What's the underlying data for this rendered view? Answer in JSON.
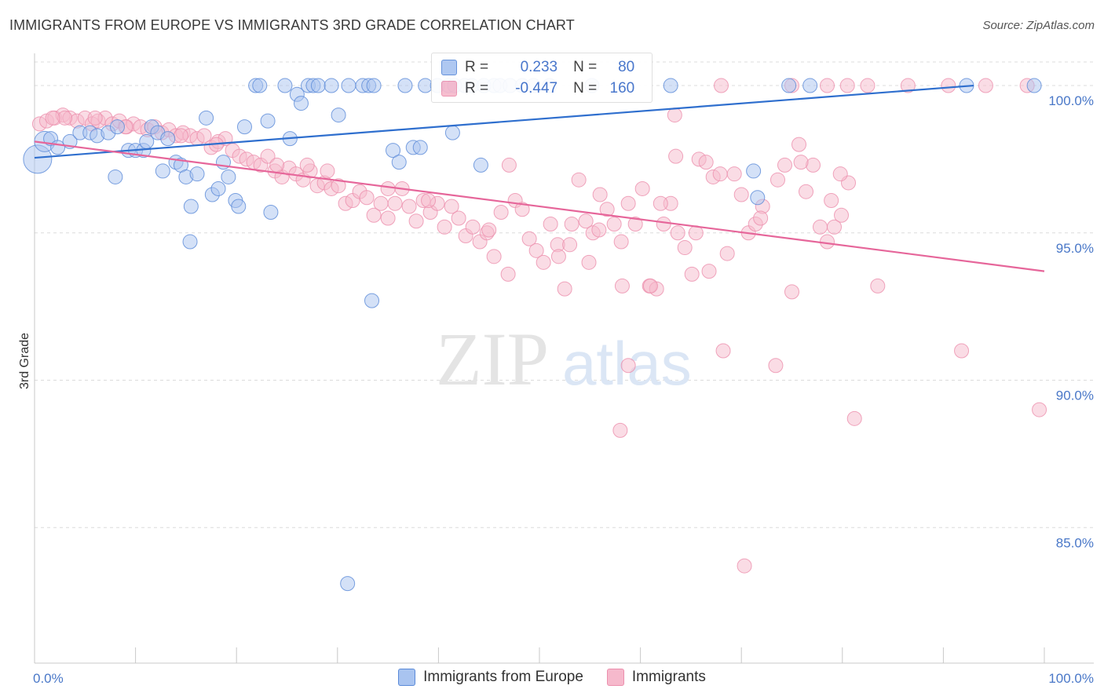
{
  "header": {
    "title": "IMMIGRANTS FROM EUROPE VS IMMIGRANTS 3RD GRADE CORRELATION CHART",
    "source": "Source: ZipAtlas.com"
  },
  "watermark": {
    "zip": "ZIP",
    "atlas": "atlas"
  },
  "colors": {
    "blue_fill": "#a9c4f0",
    "blue_stroke": "#5a8ad8",
    "blue_line": "#2f6fce",
    "pink_fill": "#f6b9cc",
    "pink_stroke": "#ec8fad",
    "pink_line": "#e6669a",
    "axis_label": "#4a78c8"
  },
  "legend": {
    "rows": [
      {
        "r_key": "R =",
        "r_val": "0.233",
        "n_key": "N =",
        "n_val": "80"
      },
      {
        "r_key": "R =",
        "r_val": "-0.447",
        "n_key": "N =",
        "n_val": "160"
      }
    ]
  },
  "bottom_legend": [
    "Immigrants from Europe",
    "Immigrants"
  ],
  "chart_data": {
    "type": "scatter",
    "title": "IMMIGRANTS FROM EUROPE VS IMMIGRANTS 3RD GRADE CORRELATION CHART",
    "xlabel": "",
    "ylabel": "3rd Grade",
    "xlim": [
      0,
      100
    ],
    "ylim": [
      80.4,
      100.8
    ],
    "x_tick_labels": [
      "0.0%",
      "100.0%"
    ],
    "y_ticks": [
      {
        "value": 85,
        "label": "85.0%"
      },
      {
        "value": 90,
        "label": "90.0%"
      },
      {
        "value": 95,
        "label": "95.0%"
      },
      {
        "value": 100,
        "label": "100.0%"
      }
    ],
    "grid": true,
    "series": [
      {
        "name": "Immigrants from Europe",
        "color": "blue",
        "r": 0.233,
        "n": 80,
        "trend": {
          "x": [
            0,
            93
          ],
          "y": [
            97.55,
            100.0
          ]
        },
        "points": [
          [
            0.3,
            97.5
          ],
          [
            1.0,
            98.1
          ],
          [
            1.6,
            98.2
          ],
          [
            2.3,
            97.9
          ],
          [
            3.5,
            98.1
          ],
          [
            4.5,
            98.4
          ],
          [
            5.5,
            98.4
          ],
          [
            6.2,
            98.3
          ],
          [
            7.3,
            98.4
          ],
          [
            8.2,
            98.6
          ],
          [
            9.3,
            97.8
          ],
          [
            10.0,
            97.8
          ],
          [
            10.8,
            97.8
          ],
          [
            11.1,
            98.1
          ],
          [
            11.6,
            98.6
          ],
          [
            12.2,
            98.4
          ],
          [
            12.7,
            97.1
          ],
          [
            13.2,
            98.2
          ],
          [
            14.0,
            97.4
          ],
          [
            14.5,
            97.3
          ],
          [
            15.0,
            96.9
          ],
          [
            15.5,
            95.9
          ],
          [
            16.1,
            97.0
          ],
          [
            17.0,
            98.9
          ],
          [
            17.6,
            96.3
          ],
          [
            18.2,
            96.5
          ],
          [
            18.7,
            97.4
          ],
          [
            19.2,
            96.9
          ],
          [
            19.9,
            96.1
          ],
          [
            20.2,
            95.9
          ],
          [
            20.8,
            98.6
          ],
          [
            21.9,
            100.0
          ],
          [
            22.3,
            100.0
          ],
          [
            23.1,
            98.8
          ],
          [
            24.8,
            100.0
          ],
          [
            25.3,
            98.2
          ],
          [
            26.0,
            99.7
          ],
          [
            26.4,
            99.4
          ],
          [
            27.1,
            100.0
          ],
          [
            27.6,
            100.0
          ],
          [
            28.1,
            100.0
          ],
          [
            29.4,
            100.0
          ],
          [
            30.1,
            99.0
          ],
          [
            31.1,
            100.0
          ],
          [
            32.5,
            100.0
          ],
          [
            33.1,
            100.0
          ],
          [
            33.6,
            100.0
          ],
          [
            35.5,
            97.8
          ],
          [
            36.1,
            97.4
          ],
          [
            36.7,
            100.0
          ],
          [
            37.5,
            97.9
          ],
          [
            38.2,
            97.9
          ],
          [
            38.7,
            100.0
          ],
          [
            39.9,
            100.0
          ],
          [
            41.0,
            100.0
          ],
          [
            41.6,
            100.0
          ],
          [
            42.6,
            100.0
          ],
          [
            43.3,
            100.0
          ],
          [
            44.5,
            100.0
          ],
          [
            45.5,
            100.0
          ],
          [
            46.1,
            100.0
          ],
          [
            8.0,
            96.9
          ],
          [
            23.4,
            95.7
          ],
          [
            15.4,
            94.7
          ],
          [
            33.4,
            92.7
          ],
          [
            31.0,
            83.1
          ],
          [
            41.4,
            98.4
          ],
          [
            44.2,
            97.3
          ],
          [
            47.1,
            100.0
          ],
          [
            48.3,
            100.0
          ],
          [
            49.4,
            100.0
          ],
          [
            51.0,
            100.0
          ],
          [
            55.2,
            100.0
          ],
          [
            63.0,
            100.0
          ],
          [
            71.2,
            97.1
          ],
          [
            71.6,
            96.2
          ],
          [
            76.8,
            100.0
          ],
          [
            92.3,
            100.0
          ],
          [
            99.0,
            100.0
          ],
          [
            74.7,
            100.0
          ]
        ]
      },
      {
        "name": "Immigrants",
        "color": "pink",
        "r": -0.447,
        "n": 160,
        "trend": {
          "x": [
            0,
            100
          ],
          "y": [
            98.1,
            93.7
          ]
        },
        "points": [
          [
            0.5,
            98.7
          ],
          [
            1.2,
            98.8
          ],
          [
            2.0,
            98.9
          ],
          [
            2.8,
            99.0
          ],
          [
            3.5,
            98.9
          ],
          [
            4.2,
            98.8
          ],
          [
            5.0,
            98.9
          ],
          [
            5.7,
            98.7
          ],
          [
            6.3,
            98.8
          ],
          [
            7.0,
            98.9
          ],
          [
            7.7,
            98.7
          ],
          [
            8.4,
            98.8
          ],
          [
            9.1,
            98.6
          ],
          [
            9.8,
            98.7
          ],
          [
            10.5,
            98.6
          ],
          [
            11.2,
            98.5
          ],
          [
            11.9,
            98.6
          ],
          [
            12.6,
            98.4
          ],
          [
            13.3,
            98.5
          ],
          [
            14.0,
            98.3
          ],
          [
            14.7,
            98.4
          ],
          [
            15.4,
            98.3
          ],
          [
            16.1,
            98.2
          ],
          [
            16.8,
            98.3
          ],
          [
            17.5,
            97.9
          ],
          [
            18.2,
            98.1
          ],
          [
            18.9,
            98.2
          ],
          [
            19.6,
            97.8
          ],
          [
            20.3,
            97.6
          ],
          [
            21.0,
            97.5
          ],
          [
            21.7,
            97.4
          ],
          [
            22.4,
            97.3
          ],
          [
            23.1,
            97.6
          ],
          [
            23.8,
            97.1
          ],
          [
            24.5,
            96.9
          ],
          [
            25.2,
            97.2
          ],
          [
            25.9,
            97.0
          ],
          [
            26.6,
            96.8
          ],
          [
            27.3,
            97.1
          ],
          [
            28.0,
            96.6
          ],
          [
            28.7,
            96.7
          ],
          [
            29.4,
            96.5
          ],
          [
            30.1,
            96.6
          ],
          [
            30.8,
            96.0
          ],
          [
            31.5,
            96.1
          ],
          [
            32.2,
            96.4
          ],
          [
            32.9,
            96.2
          ],
          [
            33.6,
            95.6
          ],
          [
            34.3,
            96.0
          ],
          [
            35.0,
            95.5
          ],
          [
            35.7,
            96.0
          ],
          [
            36.4,
            96.5
          ],
          [
            37.1,
            95.9
          ],
          [
            37.8,
            95.4
          ],
          [
            38.5,
            96.1
          ],
          [
            39.2,
            95.7
          ],
          [
            39.9,
            96.0
          ],
          [
            40.6,
            95.2
          ],
          [
            41.3,
            95.9
          ],
          [
            42.0,
            95.5
          ],
          [
            42.7,
            94.9
          ],
          [
            43.4,
            95.2
          ],
          [
            44.1,
            94.7
          ],
          [
            44.8,
            95.0
          ],
          [
            45.5,
            94.2
          ],
          [
            46.2,
            95.7
          ],
          [
            46.9,
            93.6
          ],
          [
            47.6,
            96.1
          ],
          [
            48.3,
            95.8
          ],
          [
            49.0,
            94.8
          ],
          [
            49.7,
            94.4
          ],
          [
            50.4,
            94.0
          ],
          [
            51.1,
            95.3
          ],
          [
            51.8,
            94.6
          ],
          [
            52.5,
            93.1
          ],
          [
            53.2,
            95.3
          ],
          [
            53.9,
            96.8
          ],
          [
            54.6,
            95.4
          ],
          [
            55.3,
            95.0
          ],
          [
            56.0,
            96.3
          ],
          [
            56.7,
            95.8
          ],
          [
            57.4,
            95.3
          ],
          [
            58.1,
            94.7
          ],
          [
            58.8,
            96.0
          ],
          [
            59.5,
            95.3
          ],
          [
            60.2,
            96.5
          ],
          [
            60.9,
            93.2
          ],
          [
            61.6,
            93.1
          ],
          [
            62.3,
            95.3
          ],
          [
            63.0,
            96.0
          ],
          [
            63.7,
            95.0
          ],
          [
            64.4,
            94.5
          ],
          [
            65.1,
            93.6
          ],
          [
            65.8,
            97.5
          ],
          [
            66.5,
            97.4
          ],
          [
            67.2,
            96.9
          ],
          [
            67.9,
            97.0
          ],
          [
            68.6,
            94.3
          ],
          [
            69.3,
            97.0
          ],
          [
            70.0,
            96.3
          ],
          [
            70.7,
            95.0
          ],
          [
            71.4,
            95.3
          ],
          [
            72.1,
            95.9
          ],
          [
            73.6,
            96.8
          ],
          [
            74.3,
            97.3
          ],
          [
            75.0,
            93.0
          ],
          [
            75.7,
            98.0
          ],
          [
            76.4,
            96.4
          ],
          [
            77.1,
            97.3
          ],
          [
            77.8,
            95.2
          ],
          [
            78.5,
            94.7
          ],
          [
            79.2,
            95.2
          ],
          [
            79.9,
            95.6
          ],
          [
            80.6,
            96.7
          ],
          [
            83.5,
            93.2
          ],
          [
            63.5,
            97.6
          ],
          [
            54.9,
            94.0
          ],
          [
            55.9,
            95.1
          ],
          [
            58.2,
            93.2
          ],
          [
            51.9,
            94.2
          ],
          [
            66.8,
            93.7
          ],
          [
            68.2,
            91.0
          ],
          [
            58.0,
            88.3
          ],
          [
            70.3,
            83.7
          ],
          [
            58.8,
            90.5
          ],
          [
            73.4,
            90.5
          ],
          [
            78.9,
            96.1
          ],
          [
            86.5,
            100.0
          ],
          [
            90.5,
            100.0
          ],
          [
            91.8,
            91.0
          ],
          [
            94.2,
            100.0
          ],
          [
            98.3,
            100.0
          ],
          [
            99.5,
            89.0
          ],
          [
            78.5,
            100.0
          ],
          [
            80.5,
            100.0
          ],
          [
            82.5,
            100.0
          ],
          [
            75.0,
            100.0
          ],
          [
            68.0,
            100.0
          ],
          [
            63.4,
            99.0
          ],
          [
            81.2,
            88.7
          ],
          [
            47.0,
            97.3
          ],
          [
            35.0,
            96.5
          ],
          [
            27.0,
            97.3
          ],
          [
            18.0,
            98.0
          ],
          [
            14.5,
            98.3
          ],
          [
            9.0,
            98.6
          ],
          [
            6.0,
            98.9
          ],
          [
            3.0,
            98.9
          ],
          [
            1.8,
            98.9
          ],
          [
            24.0,
            97.3
          ],
          [
            29.0,
            97.1
          ],
          [
            39.0,
            96.1
          ],
          [
            45.0,
            95.1
          ],
          [
            53.0,
            94.6
          ],
          [
            61.0,
            93.2
          ],
          [
            65.5,
            95.0
          ],
          [
            71.9,
            95.5
          ],
          [
            75.9,
            97.4
          ],
          [
            79.8,
            97.0
          ],
          [
            62.0,
            96.0
          ]
        ]
      }
    ]
  }
}
